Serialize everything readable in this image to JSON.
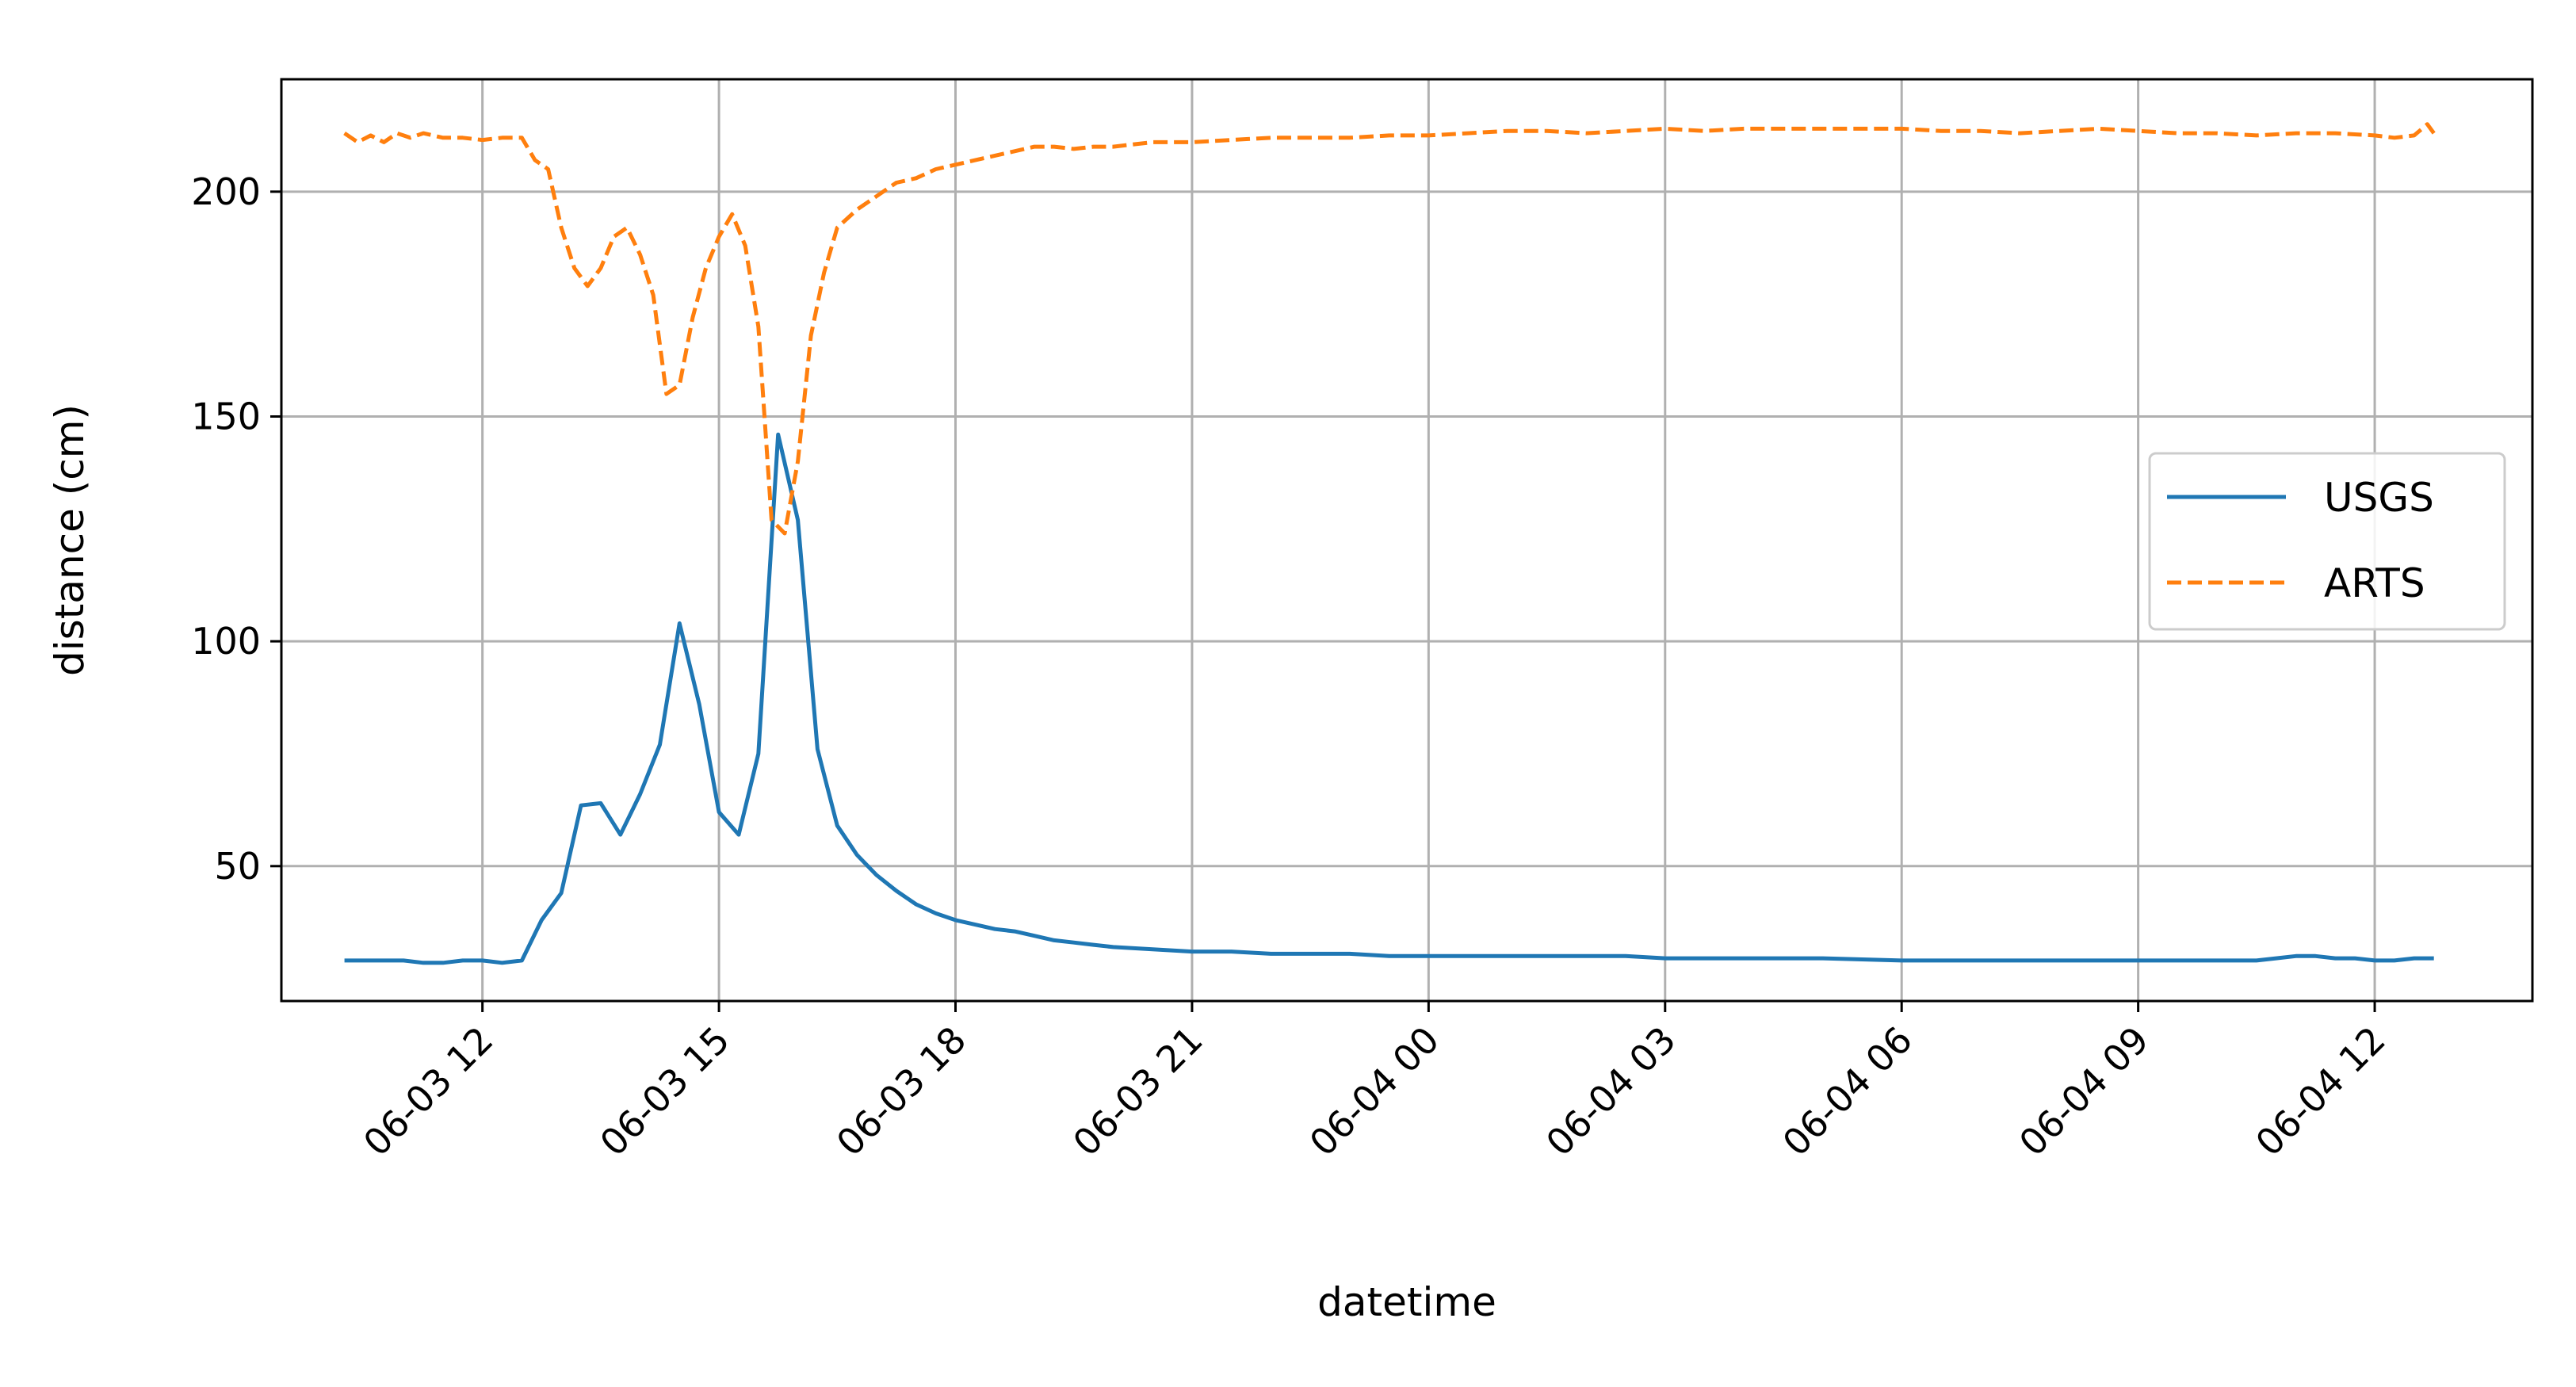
{
  "chart_data": {
    "type": "line",
    "title": "",
    "xlabel": "datetime",
    "ylabel": "distance (cm)",
    "x_ticks": [
      "06-03 12",
      "06-03 15",
      "06-03 18",
      "06-03 21",
      "06-04 00",
      "06-04 03",
      "06-04 06",
      "06-04 09",
      "06-04 12"
    ],
    "y_ticks": [
      50,
      100,
      150,
      200
    ],
    "xlim": [
      "2023-06-03 09:27",
      "2023-06-04 14:00"
    ],
    "ylim": [
      20,
      225
    ],
    "grid": true,
    "legend_position": "center-right",
    "series": [
      {
        "name": "USGS",
        "color": "#1f77b4",
        "style": "solid",
        "points": [
          [
            "06-03 10:15",
            29
          ],
          [
            "06-03 10:30",
            29
          ],
          [
            "06-03 10:45",
            29
          ],
          [
            "06-03 11:00",
            29
          ],
          [
            "06-03 11:15",
            28.5
          ],
          [
            "06-03 11:30",
            28.5
          ],
          [
            "06-03 11:45",
            29
          ],
          [
            "06-03 12:00",
            29
          ],
          [
            "06-03 12:15",
            28.5
          ],
          [
            "06-03 12:30",
            29
          ],
          [
            "06-03 12:45",
            38
          ],
          [
            "06-03 13:00",
            44
          ],
          [
            "06-03 13:15",
            63.5
          ],
          [
            "06-03 13:30",
            64
          ],
          [
            "06-03 13:45",
            57
          ],
          [
            "06-03 14:00",
            66
          ],
          [
            "06-03 14:15",
            77
          ],
          [
            "06-03 14:30",
            104
          ],
          [
            "06-03 14:45",
            86
          ],
          [
            "06-03 15:00",
            62
          ],
          [
            "06-03 15:15",
            57
          ],
          [
            "06-03 15:30",
            75
          ],
          [
            "06-03 15:45",
            146
          ],
          [
            "06-03 16:00",
            127
          ],
          [
            "06-03 16:15",
            76
          ],
          [
            "06-03 16:30",
            59
          ],
          [
            "06-03 16:45",
            52.5
          ],
          [
            "06-03 17:00",
            48
          ],
          [
            "06-03 17:15",
            44.5
          ],
          [
            "06-03 17:30",
            41.5
          ],
          [
            "06-03 17:45",
            39.5
          ],
          [
            "06-03 18:00",
            38
          ],
          [
            "06-03 18:15",
            37
          ],
          [
            "06-03 18:30",
            36
          ],
          [
            "06-03 18:45",
            35.5
          ],
          [
            "06-03 19:00",
            34.5
          ],
          [
            "06-03 19:15",
            33.5
          ],
          [
            "06-03 19:30",
            33
          ],
          [
            "06-03 19:45",
            32.5
          ],
          [
            "06-03 20:00",
            32
          ],
          [
            "06-03 20:30",
            31.5
          ],
          [
            "06-03 21:00",
            31
          ],
          [
            "06-03 21:30",
            31
          ],
          [
            "06-03 22:00",
            30.5
          ],
          [
            "06-03 22:30",
            30.5
          ],
          [
            "06-03 23:00",
            30.5
          ],
          [
            "06-03 23:30",
            30
          ],
          [
            "06-04 00:00",
            30
          ],
          [
            "06-04 00:30",
            30
          ],
          [
            "06-04 01:00",
            30
          ],
          [
            "06-04 01:30",
            30
          ],
          [
            "06-04 02:00",
            30
          ],
          [
            "06-04 02:30",
            30
          ],
          [
            "06-04 03:00",
            29.5
          ],
          [
            "06-04 04:00",
            29.5
          ],
          [
            "06-04 05:00",
            29.5
          ],
          [
            "06-04 06:00",
            29
          ],
          [
            "06-04 07:00",
            29
          ],
          [
            "06-04 08:00",
            29
          ],
          [
            "06-04 08:45",
            29
          ],
          [
            "06-04 09:00",
            29
          ],
          [
            "06-04 09:30",
            29
          ],
          [
            "06-04 10:00",
            29
          ],
          [
            "06-04 10:30",
            29
          ],
          [
            "06-04 10:45",
            29.5
          ],
          [
            "06-04 11:00",
            30
          ],
          [
            "06-04 11:15",
            30
          ],
          [
            "06-04 11:30",
            29.5
          ],
          [
            "06-04 11:45",
            29.5
          ],
          [
            "06-04 12:00",
            29
          ],
          [
            "06-04 12:15",
            29
          ],
          [
            "06-04 12:30",
            29.5
          ],
          [
            "06-04 12:45",
            29.5
          ]
        ]
      },
      {
        "name": "ARTS",
        "color": "#ff7f0e",
        "style": "dashed",
        "points": [
          [
            "06-03 10:15",
            213
          ],
          [
            "06-03 10:25",
            211
          ],
          [
            "06-03 10:35",
            212.5
          ],
          [
            "06-03 10:45",
            211
          ],
          [
            "06-03 10:55",
            213
          ],
          [
            "06-03 11:05",
            212
          ],
          [
            "06-03 11:15",
            213
          ],
          [
            "06-03 11:30",
            212
          ],
          [
            "06-03 11:45",
            212
          ],
          [
            "06-03 12:00",
            211.5
          ],
          [
            "06-03 12:15",
            212
          ],
          [
            "06-03 12:30",
            212
          ],
          [
            "06-03 12:40",
            207
          ],
          [
            "06-03 12:50",
            205
          ],
          [
            "06-03 13:00",
            192
          ],
          [
            "06-03 13:10",
            183
          ],
          [
            "06-03 13:20",
            179
          ],
          [
            "06-03 13:30",
            183
          ],
          [
            "06-03 13:40",
            190
          ],
          [
            "06-03 13:50",
            192
          ],
          [
            "06-03 14:00",
            186
          ],
          [
            "06-03 14:10",
            177
          ],
          [
            "06-03 14:20",
            155
          ],
          [
            "06-03 14:30",
            157
          ],
          [
            "06-03 14:40",
            172
          ],
          [
            "06-03 14:50",
            183
          ],
          [
            "06-03 15:00",
            190
          ],
          [
            "06-03 15:10",
            195
          ],
          [
            "06-03 15:20",
            188
          ],
          [
            "06-03 15:30",
            170
          ],
          [
            "06-03 15:40",
            127
          ],
          [
            "06-03 15:50",
            124
          ],
          [
            "06-03 16:00",
            140
          ],
          [
            "06-03 16:10",
            168
          ],
          [
            "06-03 16:20",
            182
          ],
          [
            "06-03 16:30",
            192
          ],
          [
            "06-03 16:45",
            196
          ],
          [
            "06-03 17:00",
            199
          ],
          [
            "06-03 17:15",
            202
          ],
          [
            "06-03 17:30",
            203
          ],
          [
            "06-03 17:45",
            205
          ],
          [
            "06-03 18:00",
            206
          ],
          [
            "06-03 18:15",
            207
          ],
          [
            "06-03 18:30",
            208
          ],
          [
            "06-03 18:45",
            209
          ],
          [
            "06-03 19:00",
            210
          ],
          [
            "06-03 19:15",
            210
          ],
          [
            "06-03 19:30",
            209.5
          ],
          [
            "06-03 19:45",
            210
          ],
          [
            "06-03 20:00",
            210
          ],
          [
            "06-03 20:30",
            211
          ],
          [
            "06-03 21:00",
            211
          ],
          [
            "06-03 21:30",
            211.5
          ],
          [
            "06-03 22:00",
            212
          ],
          [
            "06-03 22:30",
            212
          ],
          [
            "06-03 23:00",
            212
          ],
          [
            "06-03 23:30",
            212.5
          ],
          [
            "06-04 00:00",
            212.5
          ],
          [
            "06-04 00:30",
            213
          ],
          [
            "06-04 01:00",
            213.5
          ],
          [
            "06-04 01:30",
            213.5
          ],
          [
            "06-04 02:00",
            213
          ],
          [
            "06-04 02:30",
            213.5
          ],
          [
            "06-04 03:00",
            214
          ],
          [
            "06-04 03:30",
            213.5
          ],
          [
            "06-04 04:00",
            214
          ],
          [
            "06-04 04:30",
            214
          ],
          [
            "06-04 05:00",
            214
          ],
          [
            "06-04 05:30",
            214
          ],
          [
            "06-04 06:00",
            214
          ],
          [
            "06-04 06:30",
            213.5
          ],
          [
            "06-04 07:00",
            213.5
          ],
          [
            "06-04 07:30",
            213
          ],
          [
            "06-04 08:00",
            213.5
          ],
          [
            "06-04 08:30",
            214
          ],
          [
            "06-04 09:00",
            213.5
          ],
          [
            "06-04 09:30",
            213
          ],
          [
            "06-04 10:00",
            213
          ],
          [
            "06-04 10:30",
            212.5
          ],
          [
            "06-04 11:00",
            213
          ],
          [
            "06-04 11:30",
            213
          ],
          [
            "06-04 12:00",
            212.5
          ],
          [
            "06-04 12:15",
            212
          ],
          [
            "06-04 12:30",
            212.5
          ],
          [
            "06-04 12:40",
            215
          ],
          [
            "06-04 12:45",
            213
          ]
        ]
      }
    ]
  }
}
